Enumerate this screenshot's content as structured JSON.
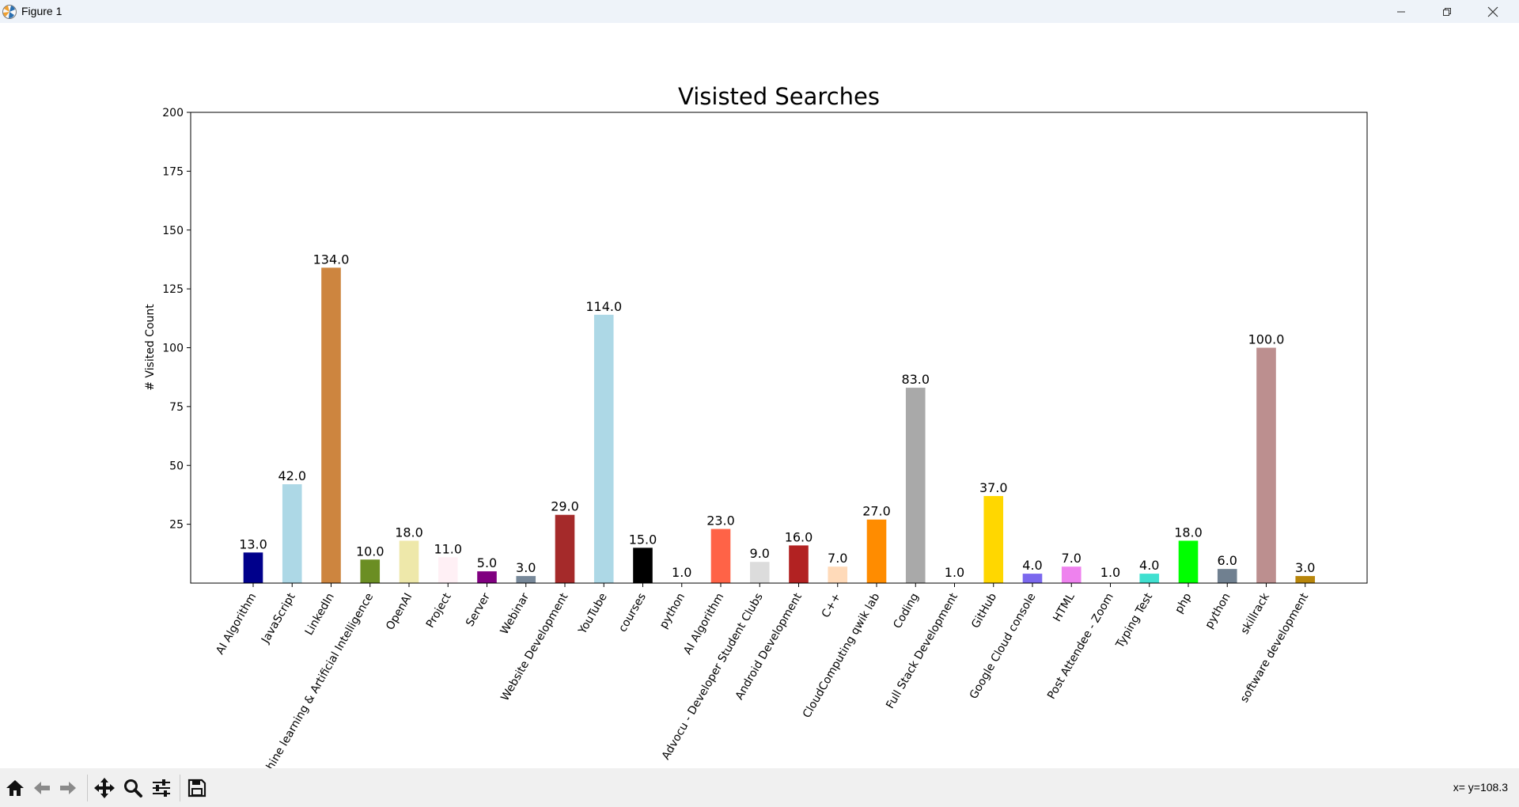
{
  "window": {
    "title": "Figure 1"
  },
  "status": {
    "coords": "x= y=108.3"
  },
  "icons": {
    "app": "matplotlib-icon",
    "minimize": "minimize-icon",
    "maximize": "restore-icon",
    "close": "close-icon",
    "toolbar": [
      "home-icon",
      "back-arrow-icon",
      "forward-arrow-icon",
      "pan-icon",
      "zoom-icon",
      "configure-subplots-icon",
      "save-icon"
    ]
  },
  "chart_data": {
    "type": "bar",
    "title": "Visisted Searches",
    "xlabel": "",
    "ylabel": "# Visited Count",
    "ylim": [
      0,
      200
    ],
    "yticks": [
      25,
      50,
      75,
      100,
      125,
      150,
      175,
      200
    ],
    "grid": false,
    "legend": "none",
    "categories": [
      "AI Algorithm",
      "JavaScript",
      "LinkedIn",
      "Machine learning & Artificial Intelligence",
      "OpenAI",
      "Project",
      "Server",
      "Webinar",
      "Website Development",
      "YouTube",
      "courses",
      "python",
      "AI Algorithm",
      "Advocu - Developer Student Clubs",
      "Android  Development",
      "C++",
      "CloudComputing qwik lab",
      "Coding",
      "Full Stack Development",
      "GitHub",
      "Google Cloud console",
      "HTML",
      "Post Attendee - Zoom",
      "Typing Test",
      "php",
      "python",
      "skillrack",
      "software development"
    ],
    "values": [
      13,
      42,
      134,
      10,
      18,
      11,
      5,
      3,
      29,
      114,
      15,
      1,
      23,
      9,
      16,
      7,
      27,
      83,
      1,
      37,
      4,
      7,
      1,
      4,
      18,
      6,
      100,
      3
    ],
    "value_labels": [
      "13.0",
      "42.0",
      "134.0",
      "10.0",
      "18.0",
      "11.0",
      "5.0",
      "3.0",
      "29.0",
      "114.0",
      "15.0",
      "1.0",
      "23.0",
      "9.0",
      "16.0",
      "7.0",
      "27.0",
      "83.0",
      "1.0",
      "37.0",
      "4.0",
      "7.0",
      "1.0",
      "4.0",
      "18.0",
      "6.0",
      "100.0",
      "3.0"
    ],
    "colors": [
      "#00008b",
      "#add8e6",
      "#cd853f",
      "#6b8e23",
      "#eee8aa",
      "#fff0f5",
      "#800080",
      "#778899",
      "#a52a2a",
      "#add8e6",
      "#000000",
      "#ffffff",
      "#ff6347",
      "#dcdcdc",
      "#b22222",
      "#ffdab9",
      "#ff8c00",
      "#a9a9a9",
      "#ffffff",
      "#ffd700",
      "#7b68ee",
      "#ee82ee",
      "#ffffff",
      "#40e0d0",
      "#00ff00",
      "#708090",
      "#bc8f8f",
      "#b8860b"
    ]
  }
}
